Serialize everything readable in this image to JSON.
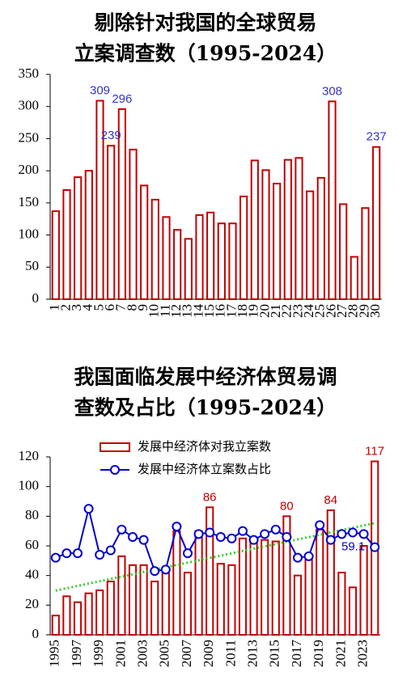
{
  "chart_data": [
    {
      "type": "bar",
      "title": [
        "剔除针对我国的全球贸易",
        "立案调查数（1995-2024）"
      ],
      "categories": [
        "1",
        "2",
        "3",
        "4",
        "5",
        "6",
        "7",
        "8",
        "9",
        "10",
        "11",
        "12",
        "13",
        "14",
        "15",
        "16",
        "17",
        "18",
        "19",
        "20",
        "21",
        "22",
        "23",
        "24",
        "25",
        "26",
        "27",
        "28",
        "29",
        "30"
      ],
      "values": [
        137,
        170,
        190,
        200,
        309,
        239,
        296,
        233,
        177,
        155,
        128,
        108,
        94,
        131,
        135,
        118,
        118,
        160,
        216,
        201,
        180,
        217,
        220,
        168,
        189,
        308,
        148,
        66,
        142,
        237
      ],
      "value_labels": [
        null,
        null,
        null,
        null,
        309,
        239,
        296,
        null,
        null,
        null,
        null,
        null,
        null,
        null,
        null,
        null,
        null,
        null,
        null,
        null,
        null,
        null,
        null,
        null,
        null,
        308,
        null,
        null,
        null,
        237
      ],
      "color": "#c00000",
      "label_color": "#3333cc",
      "ylim": [
        0,
        350
      ],
      "yticks": [
        0,
        50,
        100,
        150,
        200,
        250,
        300,
        350
      ]
    },
    {
      "type": "bar-line",
      "title": [
        "我国面临发展中经济体贸易调",
        "查数及占比（1995-2024）"
      ],
      "categories": [
        "1995",
        null,
        "1997",
        null,
        "1999",
        null,
        "2001",
        null,
        "2003",
        null,
        "2005",
        null,
        "2007",
        null,
        "2009",
        null,
        "2011",
        null,
        "2013",
        null,
        "2015",
        null,
        "2017",
        null,
        "2019",
        null,
        "2021",
        null,
        "2023",
        null
      ],
      "series": [
        {
          "name": "发展中经济体对我立案数",
          "type": "bar",
          "color": "#c00000",
          "values": [
            13,
            26,
            22,
            28,
            30,
            36,
            53,
            47,
            47,
            36,
            44,
            70,
            42,
            70,
            86,
            48,
            47,
            65,
            63,
            64,
            63,
            80,
            40,
            52,
            71,
            84,
            42,
            32,
            60,
            117
          ],
          "value_labels": [
            null,
            null,
            null,
            null,
            null,
            null,
            null,
            null,
            null,
            null,
            null,
            null,
            null,
            null,
            86,
            null,
            null,
            null,
            null,
            null,
            null,
            80,
            null,
            null,
            null,
            84,
            null,
            null,
            null,
            117
          ]
        },
        {
          "name": "发展中经济体立案数占比",
          "type": "line",
          "color": "#0000cc",
          "values": [
            52,
            55,
            55,
            85,
            54,
            57,
            71,
            66,
            64,
            43,
            44,
            73,
            55,
            68,
            69,
            66,
            65,
            70,
            64,
            68,
            71,
            66,
            52,
            53,
            74,
            64,
            68,
            69,
            68,
            59.1
          ],
          "value_labels": [
            null,
            null,
            null,
            null,
            null,
            null,
            null,
            null,
            null,
            null,
            null,
            null,
            null,
            null,
            null,
            null,
            null,
            null,
            null,
            null,
            null,
            null,
            null,
            null,
            null,
            null,
            null,
            null,
            null,
            59.1
          ]
        }
      ],
      "trendline": {
        "series": 0,
        "color": "#33cc33"
      },
      "ylim": [
        0,
        120
      ],
      "yticks": [
        0,
        20,
        40,
        60,
        80,
        100,
        120
      ]
    }
  ]
}
